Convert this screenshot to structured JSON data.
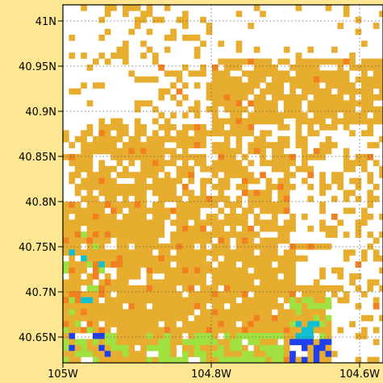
{
  "map": {
    "lat_labels": [
      "41N",
      "40.95N",
      "40.9N",
      "40.85N",
      "40.8N",
      "40.75N",
      "40.7N",
      "40.65N"
    ],
    "lon_labels": [
      "105W",
      "104.8W",
      "104.6W"
    ],
    "lat_values": [
      41.0,
      40.95,
      40.9,
      40.85,
      40.8,
      40.75,
      40.7,
      40.65
    ],
    "lon_values": [
      -105.0,
      -104.8,
      -104.6
    ],
    "extent": {
      "lon_min": -105.0,
      "lon_max": -104.58,
      "lat_min": 40.623,
      "lat_max": 41.021
    },
    "gridlines": "dotted",
    "colors": {
      "frame_background": "#fde792",
      "plot_background": "#ffffff",
      "dominant_cell": "#e6ad2e",
      "orange_cell": "#f08020",
      "lime_cell": "#a0e040",
      "cyan_cell": "#10c0d0",
      "blue_cell": "#2040f0",
      "dark_blue_cell": "#1020c0"
    }
  }
}
